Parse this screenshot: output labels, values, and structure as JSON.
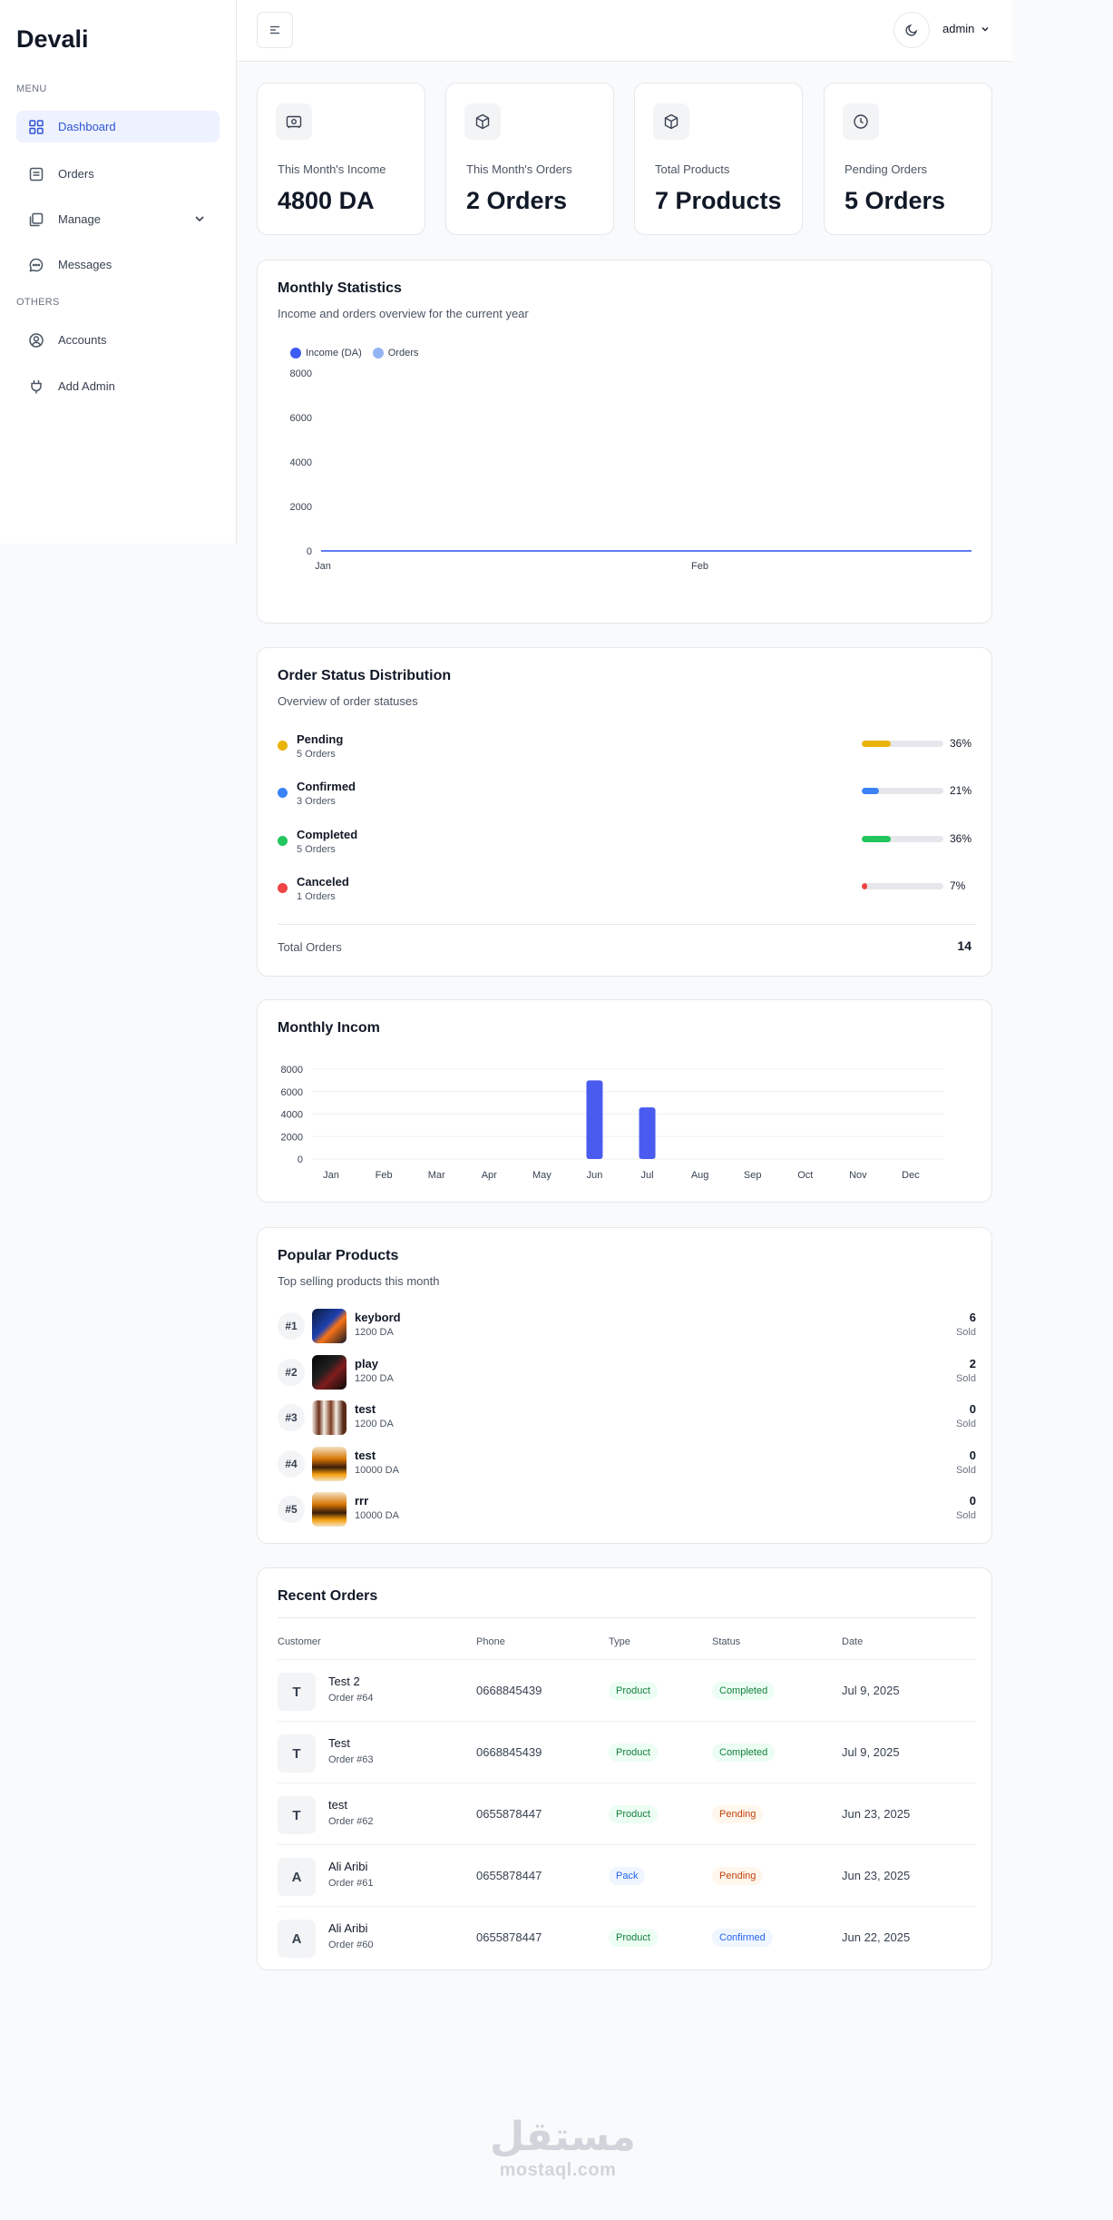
{
  "app": {
    "logo": "Devali"
  },
  "sidebar": {
    "menu_label": "MENU",
    "others_label": "OTHERS",
    "items": [
      {
        "label": "Dashboard",
        "icon": "grid-icon"
      },
      {
        "label": "Orders",
        "icon": "orders-icon"
      },
      {
        "label": "Manage",
        "icon": "layers-icon"
      },
      {
        "label": "Messages",
        "icon": "chat-icon"
      },
      {
        "label": "Accounts",
        "icon": "user-circle-icon"
      },
      {
        "label": "Add Admin",
        "icon": "plug-icon"
      }
    ]
  },
  "header": {
    "user": "admin"
  },
  "stats": [
    {
      "label": "This Month's Income",
      "value": "4800 DA",
      "icon": "money-icon"
    },
    {
      "label": "This Month's Orders",
      "value": "2 Orders",
      "icon": "box-icon"
    },
    {
      "label": "Total Products",
      "value": "7 Products",
      "icon": "box-icon"
    },
    {
      "label": "Pending Orders",
      "value": "5 Orders",
      "icon": "clock-icon"
    }
  ],
  "monthly_stats": {
    "title": "Monthly Statistics",
    "subtitle": "Income and orders overview for the current year",
    "chart_data": {
      "type": "line",
      "x": [
        "Jan",
        "Feb"
      ],
      "series": [
        {
          "name": "Income (DA)",
          "values": [
            0,
            0
          ],
          "color": "#3d5af1"
        },
        {
          "name": "Orders",
          "values": [
            0,
            0
          ],
          "color": "#93b4f5"
        }
      ],
      "yticks": [
        "8000",
        "6000",
        "4000",
        "2000",
        "0"
      ],
      "ylim": [
        0,
        8000
      ],
      "legend": "top-left",
      "grid": false
    }
  },
  "order_status": {
    "title": "Order Status Distribution",
    "subtitle": "Overview of order statuses",
    "items": [
      {
        "name": "Pending",
        "count": "5 Orders",
        "percent": "36%",
        "fraction": 0.36,
        "color": "#eab308"
      },
      {
        "name": "Confirmed",
        "count": "3 Orders",
        "percent": "21%",
        "fraction": 0.21,
        "color": "#3b82f6"
      },
      {
        "name": "Completed",
        "count": "5 Orders",
        "percent": "36%",
        "fraction": 0.36,
        "color": "#22c55e"
      },
      {
        "name": "Canceled",
        "count": "1 Orders",
        "percent": "7%",
        "fraction": 0.07,
        "color": "#ef4444"
      }
    ],
    "total_label": "Total Orders",
    "total_value": "14"
  },
  "monthly_income": {
    "title": "Monthly Incom",
    "chart_data": {
      "type": "bar",
      "categories": [
        "Jan",
        "Feb",
        "Mar",
        "Apr",
        "May",
        "Jun",
        "Jul",
        "Aug",
        "Sep",
        "Oct",
        "Nov",
        "Dec"
      ],
      "values": [
        0,
        0,
        0,
        0,
        0,
        7000,
        4600,
        0,
        0,
        0,
        0,
        0
      ],
      "yticks": [
        "8000",
        "6000",
        "4000",
        "2000",
        "0"
      ],
      "ylim": [
        0,
        8000
      ],
      "color": "#4a5cf0",
      "grid": true
    }
  },
  "popular_products": {
    "title": "Popular Products",
    "subtitle": "Top selling products this month",
    "sold_label": "Sold",
    "items": [
      {
        "rank": "#1",
        "name": "keybord",
        "price": "1200 DA",
        "sold": "6"
      },
      {
        "rank": "#2",
        "name": "play",
        "price": "1200 DA",
        "sold": "2"
      },
      {
        "rank": "#3",
        "name": "test",
        "price": "1200 DA",
        "sold": "0"
      },
      {
        "rank": "#4",
        "name": "test",
        "price": "10000 DA",
        "sold": "0"
      },
      {
        "rank": "#5",
        "name": "rrr",
        "price": "10000 DA",
        "sold": "0"
      }
    ]
  },
  "recent_orders": {
    "title": "Recent Orders",
    "columns": [
      "Customer",
      "Phone",
      "Type",
      "Status",
      "Date"
    ],
    "rows": [
      {
        "initial": "T",
        "customer": "Test 2",
        "order": "Order #64",
        "phone": "0668845439",
        "type": "Product",
        "status": "Completed",
        "date": "Jul 9, 2025"
      },
      {
        "initial": "T",
        "customer": "Test",
        "order": "Order #63",
        "phone": "0668845439",
        "type": "Product",
        "status": "Completed",
        "date": "Jul 9, 2025"
      },
      {
        "initial": "T",
        "customer": "test",
        "order": "Order #62",
        "phone": "0655878447",
        "type": "Product",
        "status": "Pending",
        "date": "Jun 23, 2025"
      },
      {
        "initial": "A",
        "customer": "Ali Aribi",
        "order": "Order #61",
        "phone": "0655878447",
        "type": "Pack",
        "status": "Pending",
        "date": "Jun 23, 2025"
      },
      {
        "initial": "A",
        "customer": "Ali Aribi",
        "order": "Order #60",
        "phone": "0655878447",
        "type": "Product",
        "status": "Confirmed",
        "date": "Jun 22, 2025"
      }
    ]
  },
  "watermark": {
    "arabic": "مستقل",
    "latin": "mostaql.com"
  }
}
